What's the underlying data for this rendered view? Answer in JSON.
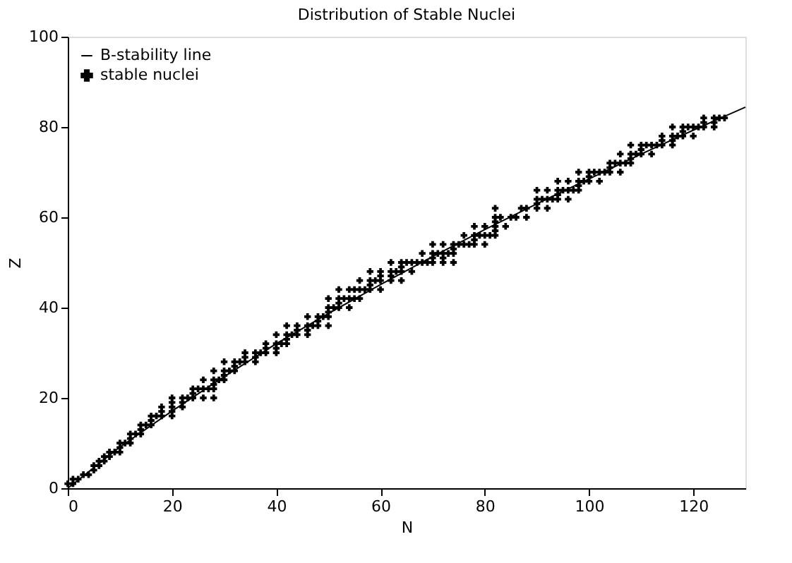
{
  "chart_data": {
    "type": "scatter",
    "title": "Distribution of Stable Nuclei",
    "xlabel": "N",
    "ylabel": "Z",
    "xlim": [
      0,
      130
    ],
    "xticks": [
      0,
      20,
      40,
      60,
      80,
      100,
      120
    ],
    "ylim": [
      0,
      100
    ],
    "yticks": [
      0,
      20,
      40,
      60,
      80,
      100
    ],
    "grid": false,
    "legend": "top left",
    "series": [
      {
        "name": "B-stability line",
        "type": "line",
        "color": "#000000",
        "line_style": "solid",
        "x": [
          0,
          10,
          20,
          30,
          40,
          50,
          60,
          70,
          80,
          90,
          100,
          110,
          120,
          130
        ],
        "values": [
          0,
          9.1,
          17.1,
          24.7,
          32.0,
          38.7,
          45.1,
          51.3,
          57.3,
          63.0,
          68.5,
          74.0,
          79.3,
          84.4
        ]
      },
      {
        "name": "stable nuclei",
        "color": "#000000",
        "marker": "cross",
        "x": [
          0,
          1,
          1,
          2,
          3,
          4,
          5,
          5,
          6,
          6,
          7,
          7,
          8,
          8,
          9,
          10,
          10,
          10,
          11,
          12,
          12,
          12,
          13,
          14,
          14,
          14,
          15,
          16,
          16,
          16,
          17,
          18,
          20,
          18,
          20,
          18,
          20,
          22,
          20,
          22,
          20,
          22,
          23,
          24,
          26,
          28,
          24,
          24,
          25,
          26,
          27,
          28,
          28,
          26,
          28,
          29,
          30,
          30,
          28,
          30,
          31,
          32,
          32,
          30,
          32,
          33,
          34,
          36,
          34,
          36,
          34,
          36,
          37,
          38,
          40,
          38,
          40,
          38,
          40,
          41,
          42,
          42,
          40,
          42,
          43,
          44,
          46,
          44,
          46,
          42,
          44,
          46,
          47,
          48,
          50,
          48,
          46,
          48,
          49,
          50,
          50,
          50,
          51,
          52,
          54,
          52,
          50,
          52,
          53,
          54,
          55,
          56,
          52,
          54,
          55,
          56,
          57,
          58,
          60,
          58,
          56,
          58,
          59,
          60,
          62,
          64,
          60,
          62,
          58,
          60,
          62,
          63,
          64,
          66,
          64,
          62,
          64,
          65,
          66,
          67,
          68,
          69,
          70,
          72,
          74,
          70,
          72,
          68,
          70,
          71,
          72,
          73,
          74,
          74,
          70,
          72,
          74,
          75,
          76,
          77,
          78,
          80,
          78,
          76,
          78,
          79,
          80,
          81,
          82,
          82,
          78,
          80,
          82,
          84,
          82,
          82,
          83,
          85,
          86,
          88,
          82,
          87,
          88,
          90,
          92,
          90,
          90,
          91,
          92,
          93,
          94,
          96,
          94,
          90,
          92,
          94,
          95,
          96,
          97,
          98,
          98,
          94,
          96,
          98,
          99,
          100,
          102,
          100,
          98,
          100,
          101,
          102,
          103,
          104,
          106,
          104,
          104,
          105,
          106,
          107,
          108,
          108,
          106,
          108,
          109,
          110,
          112,
          110,
          108,
          110,
          111,
          112,
          113,
          114,
          116,
          114,
          116,
          114,
          116,
          117,
          118,
          120,
          118,
          116,
          118,
          119,
          120,
          121,
          122,
          124,
          122,
          124,
          122,
          124,
          125,
          126
        ],
        "values": [
          1,
          1,
          2,
          2,
          3,
          3,
          4,
          5,
          5,
          6,
          6,
          7,
          7,
          8,
          8,
          8,
          9,
          10,
          10,
          10,
          11,
          12,
          12,
          12,
          13,
          14,
          14,
          14,
          15,
          16,
          16,
          16,
          16,
          17,
          17,
          18,
          18,
          18,
          19,
          19,
          20,
          20,
          20,
          20,
          20,
          20,
          21,
          22,
          22,
          22,
          22,
          22,
          23,
          24,
          24,
          24,
          24,
          25,
          26,
          26,
          26,
          26,
          27,
          28,
          28,
          28,
          28,
          28,
          29,
          29,
          30,
          30,
          30,
          30,
          30,
          31,
          31,
          32,
          32,
          32,
          32,
          33,
          34,
          34,
          34,
          34,
          34,
          35,
          35,
          36,
          36,
          36,
          36,
          36,
          36,
          37,
          38,
          38,
          38,
          38,
          39,
          40,
          40,
          40,
          40,
          41,
          42,
          42,
          42,
          42,
          42,
          42,
          44,
          44,
          44,
          44,
          44,
          44,
          44,
          45,
          46,
          46,
          46,
          46,
          46,
          46,
          47,
          47,
          48,
          48,
          48,
          48,
          48,
          48,
          49,
          50,
          50,
          50,
          50,
          50,
          50,
          50,
          50,
          50,
          50,
          51,
          51,
          52,
          52,
          52,
          52,
          52,
          52,
          53,
          54,
          54,
          54,
          54,
          54,
          54,
          54,
          54,
          55,
          56,
          56,
          56,
          56,
          56,
          56,
          57,
          58,
          58,
          58,
          58,
          59,
          60,
          60,
          60,
          60,
          60,
          62,
          62,
          62,
          62,
          62,
          63,
          64,
          64,
          64,
          64,
          64,
          64,
          65,
          66,
          66,
          66,
          66,
          66,
          66,
          66,
          67,
          68,
          68,
          68,
          68,
          68,
          68,
          69,
          70,
          70,
          70,
          70,
          70,
          70,
          70,
          71,
          72,
          72,
          72,
          72,
          72,
          73,
          74,
          74,
          74,
          74,
          74,
          75,
          76,
          76,
          76,
          76,
          76,
          76,
          76,
          77,
          77,
          78,
          78,
          78,
          78,
          78,
          79,
          80,
          80,
          80,
          80,
          80,
          80,
          80,
          81,
          81,
          82,
          82,
          82,
          82
        ]
      }
    ]
  }
}
